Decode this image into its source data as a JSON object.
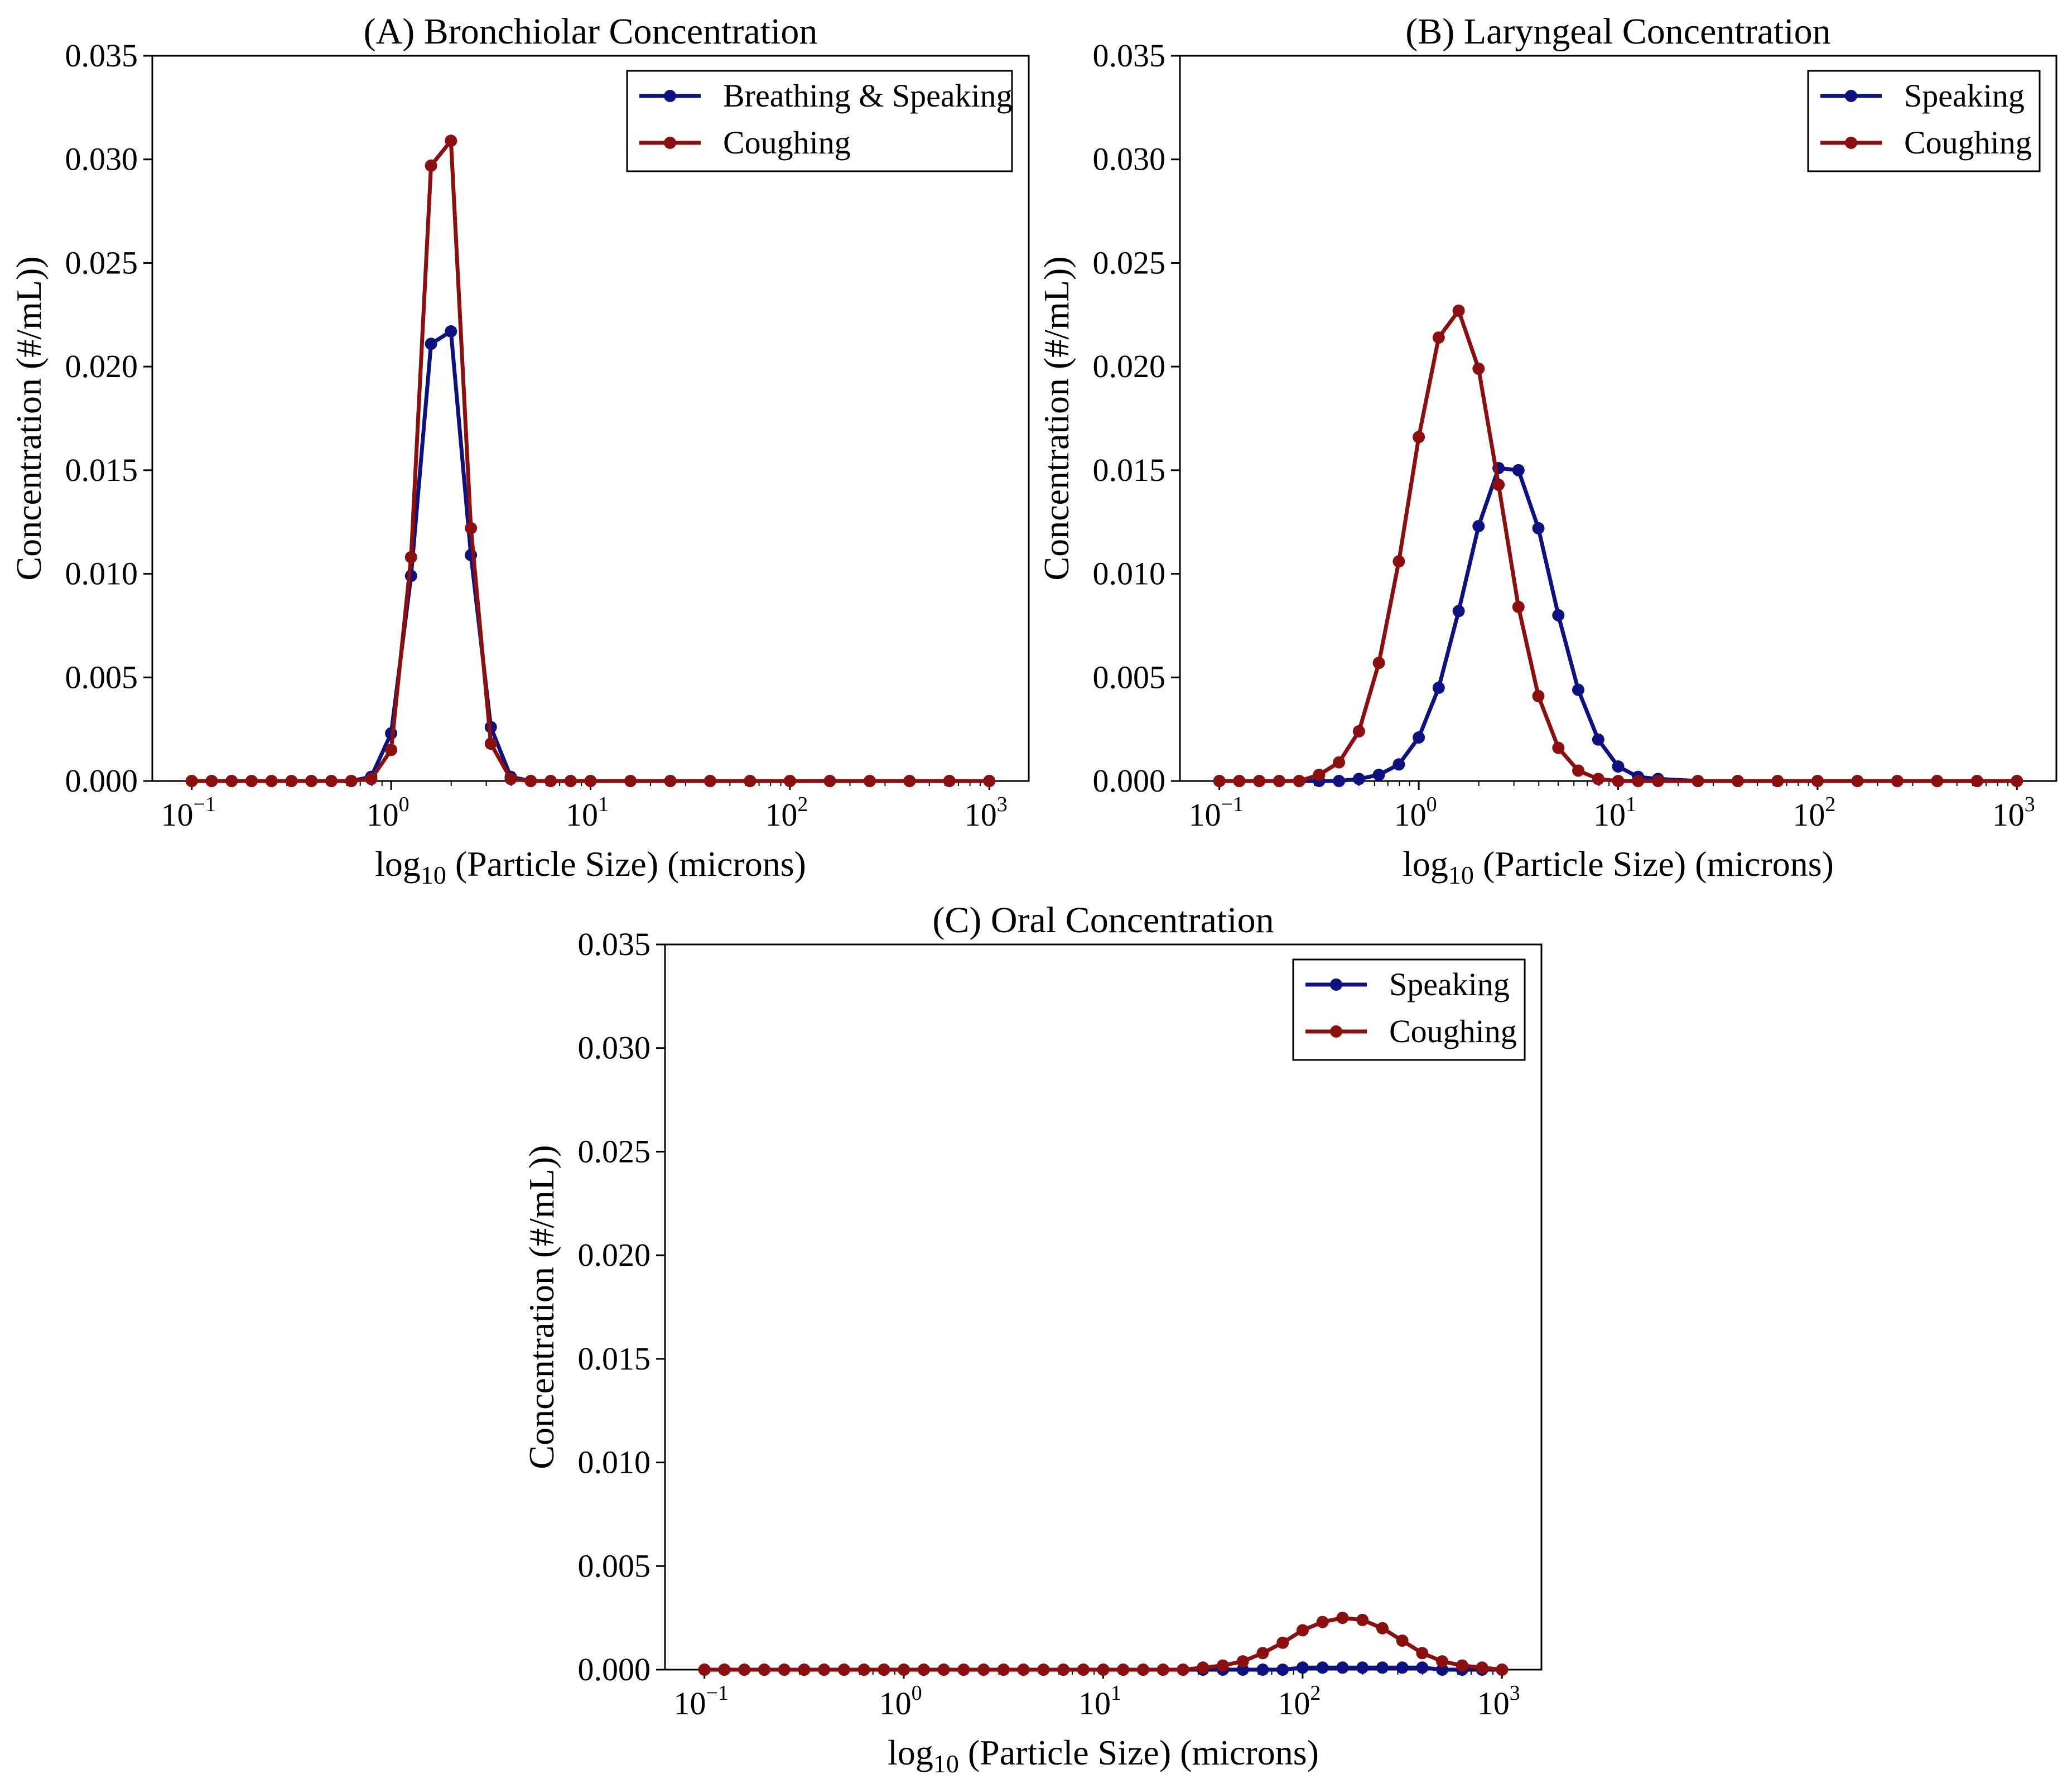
{
  "colors": {
    "blue": "#0d1280",
    "red": "#8b0f0f",
    "axis": "#000000"
  },
  "chart_data": [
    {
      "type": "line",
      "title": "(A) Bronchiolar Concentration",
      "xlabel_prefix": "log",
      "xlabel_sub": "10",
      "xlabel_rest": " (Particle Size) (microns)",
      "ylabel": "Concentration (#/mL))",
      "xscale": "log",
      "xlim": [
        0.1,
        1000
      ],
      "ylim": [
        0,
        0.035
      ],
      "yticks": [
        "0.000",
        "0.005",
        "0.010",
        "0.015",
        "0.020",
        "0.025",
        "0.030",
        "0.035"
      ],
      "xticks": [
        {
          "base": "10",
          "exp": "−1"
        },
        {
          "base": "10",
          "exp": "0"
        },
        {
          "base": "10",
          "exp": "1"
        },
        {
          "base": "10",
          "exp": "2"
        },
        {
          "base": "10",
          "exp": "3"
        }
      ],
      "legend_position": "top-right",
      "x_exponents": [
        -1.0,
        -0.9,
        -0.8,
        -0.7,
        -0.6,
        -0.5,
        -0.4,
        -0.3,
        -0.2,
        -0.1,
        0.0,
        0.1,
        0.2,
        0.3,
        0.4,
        0.5,
        0.6,
        0.7,
        0.8,
        0.9,
        1.0,
        1.2,
        1.4,
        1.6,
        1.8,
        2.0,
        2.2,
        2.4,
        2.6,
        2.8,
        3.0
      ],
      "series": [
        {
          "name": "Breathing & Speaking",
          "color_key": "blue",
          "values": [
            0,
            0,
            0,
            0,
            0,
            0,
            0,
            0,
            0,
            0.0002,
            0.0023,
            0.0099,
            0.0211,
            0.0217,
            0.0109,
            0.0026,
            0.0002,
            0,
            0,
            0,
            0,
            0,
            0,
            0,
            0,
            0,
            0,
            0,
            0,
            0,
            0
          ]
        },
        {
          "name": "Coughing",
          "color_key": "red",
          "values": [
            0,
            0,
            0,
            0,
            0,
            0,
            0,
            0,
            0,
            0.0001,
            0.0015,
            0.0108,
            0.0297,
            0.0309,
            0.0122,
            0.0018,
            0.0001,
            0,
            0,
            0,
            0,
            0,
            0,
            0,
            0,
            0,
            0,
            0,
            0,
            0,
            0
          ]
        }
      ]
    },
    {
      "type": "line",
      "title": "(B) Laryngeal Concentration",
      "xlabel_prefix": "log",
      "xlabel_sub": "10",
      "xlabel_rest": " (Particle Size) (microns)",
      "ylabel": "Concentration (#/mL))",
      "xscale": "log",
      "xlim": [
        0.1,
        1000
      ],
      "ylim": [
        0,
        0.035
      ],
      "yticks": [
        "0.000",
        "0.005",
        "0.010",
        "0.015",
        "0.020",
        "0.025",
        "0.030",
        "0.035"
      ],
      "xticks": [
        {
          "base": "10",
          "exp": "−1"
        },
        {
          "base": "10",
          "exp": "0"
        },
        {
          "base": "10",
          "exp": "1"
        },
        {
          "base": "10",
          "exp": "2"
        },
        {
          "base": "10",
          "exp": "3"
        }
      ],
      "legend_position": "top-right",
      "x_exponents": [
        -1.0,
        -0.9,
        -0.8,
        -0.7,
        -0.6,
        -0.5,
        -0.4,
        -0.3,
        -0.2,
        -0.1,
        0.0,
        0.1,
        0.2,
        0.3,
        0.4,
        0.5,
        0.6,
        0.7,
        0.8,
        0.9,
        1.0,
        1.1,
        1.2,
        1.4,
        1.6,
        1.8,
        2.0,
        2.2,
        2.4,
        2.6,
        2.8,
        3.0
      ],
      "series": [
        {
          "name": "Speaking",
          "color_key": "blue",
          "values": [
            0,
            0,
            0,
            0,
            0,
            0,
            0,
            0.0001,
            0.0003,
            0.0008,
            0.0021,
            0.0045,
            0.0082,
            0.0123,
            0.0151,
            0.015,
            0.0122,
            0.008,
            0.0044,
            0.002,
            0.0007,
            0.0002,
            0.0001,
            0,
            0,
            0,
            0,
            0,
            0,
            0,
            0,
            0
          ]
        },
        {
          "name": "Coughing",
          "color_key": "red",
          "values": [
            0,
            0,
            0,
            0,
            0,
            0.0003,
            0.0009,
            0.0024,
            0.0057,
            0.0106,
            0.0166,
            0.0214,
            0.0227,
            0.0199,
            0.0143,
            0.0084,
            0.0041,
            0.0016,
            0.0005,
            0.0001,
            0,
            0,
            0,
            0,
            0,
            0,
            0,
            0,
            0,
            0,
            0,
            0
          ]
        }
      ]
    },
    {
      "type": "line",
      "title": "(C) Oral Concentration",
      "xlabel_prefix": "log",
      "xlabel_sub": "10",
      "xlabel_rest": " (Particle Size) (microns)",
      "ylabel": "Concentration (#/mL))",
      "xscale": "log",
      "xlim": [
        0.1,
        1000
      ],
      "ylim": [
        0,
        0.035
      ],
      "yticks": [
        "0.000",
        "0.005",
        "0.010",
        "0.015",
        "0.020",
        "0.025",
        "0.030",
        "0.035"
      ],
      "xticks": [
        {
          "base": "10",
          "exp": "−1"
        },
        {
          "base": "10",
          "exp": "0"
        },
        {
          "base": "10",
          "exp": "1"
        },
        {
          "base": "10",
          "exp": "2"
        },
        {
          "base": "10",
          "exp": "3"
        }
      ],
      "legend_position": "top-right",
      "x_exponents": [
        -1.0,
        -0.9,
        -0.8,
        -0.7,
        -0.6,
        -0.5,
        -0.4,
        -0.3,
        -0.2,
        -0.1,
        0.0,
        0.1,
        0.2,
        0.3,
        0.4,
        0.5,
        0.6,
        0.7,
        0.8,
        0.9,
        1.0,
        1.1,
        1.2,
        1.3,
        1.4,
        1.5,
        1.6,
        1.7,
        1.8,
        1.9,
        2.0,
        2.1,
        2.2,
        2.3,
        2.4,
        2.5,
        2.6,
        2.7,
        2.8,
        2.9,
        3.0
      ],
      "series": [
        {
          "name": "Speaking",
          "color_key": "blue",
          "values": [
            0,
            0,
            0,
            0,
            0,
            0,
            0,
            0,
            0,
            0,
            0,
            0,
            0,
            0,
            0,
            0,
            0,
            0,
            0,
            0,
            0,
            0,
            0,
            0,
            0,
            0,
            0,
            0,
            0,
            0,
            0.0001,
            0.0001,
            0.0001,
            0.0001,
            0.0001,
            0.0001,
            0.0001,
            0,
            0,
            0,
            0
          ]
        },
        {
          "name": "Coughing",
          "color_key": "red",
          "values": [
            0,
            0,
            0,
            0,
            0,
            0,
            0,
            0,
            0,
            0,
            0,
            0,
            0,
            0,
            0,
            0,
            0,
            0,
            0,
            0,
            0,
            0,
            0,
            0,
            0,
            0.0001,
            0.0002,
            0.0004,
            0.0008,
            0.0013,
            0.0019,
            0.0023,
            0.0025,
            0.0024,
            0.002,
            0.0014,
            0.0008,
            0.0004,
            0.0002,
            0.0001,
            0
          ]
        }
      ]
    }
  ]
}
